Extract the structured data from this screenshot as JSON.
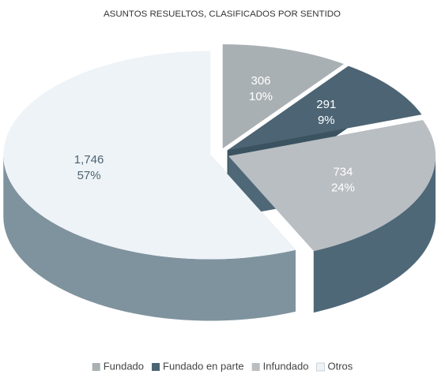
{
  "chart_data": {
    "type": "pie3d",
    "title": "ASUNTOS RESUELTOS, CLASIFICADOS POR SENTIDO",
    "categories": [
      "Fundado",
      "Fundado en parte",
      "Infundado",
      "Otros"
    ],
    "values": [
      306,
      291,
      734,
      1746
    ],
    "value_labels": [
      "306",
      "291",
      "734",
      "1,746"
    ],
    "percent_labels": [
      "10%",
      "9%",
      "24%",
      "57%"
    ],
    "colors": [
      "#a9b0b4",
      "#4c6473",
      "#b9bec2",
      "#eef3f7"
    ],
    "side_colors": [
      "#8c979d",
      "#3b5361",
      "#4f6878",
      "#7f939e"
    ],
    "label_colors": [
      "#ffffff",
      "#ffffff",
      "#ffffff",
      "#4c6473"
    ],
    "legend": "bottom"
  }
}
